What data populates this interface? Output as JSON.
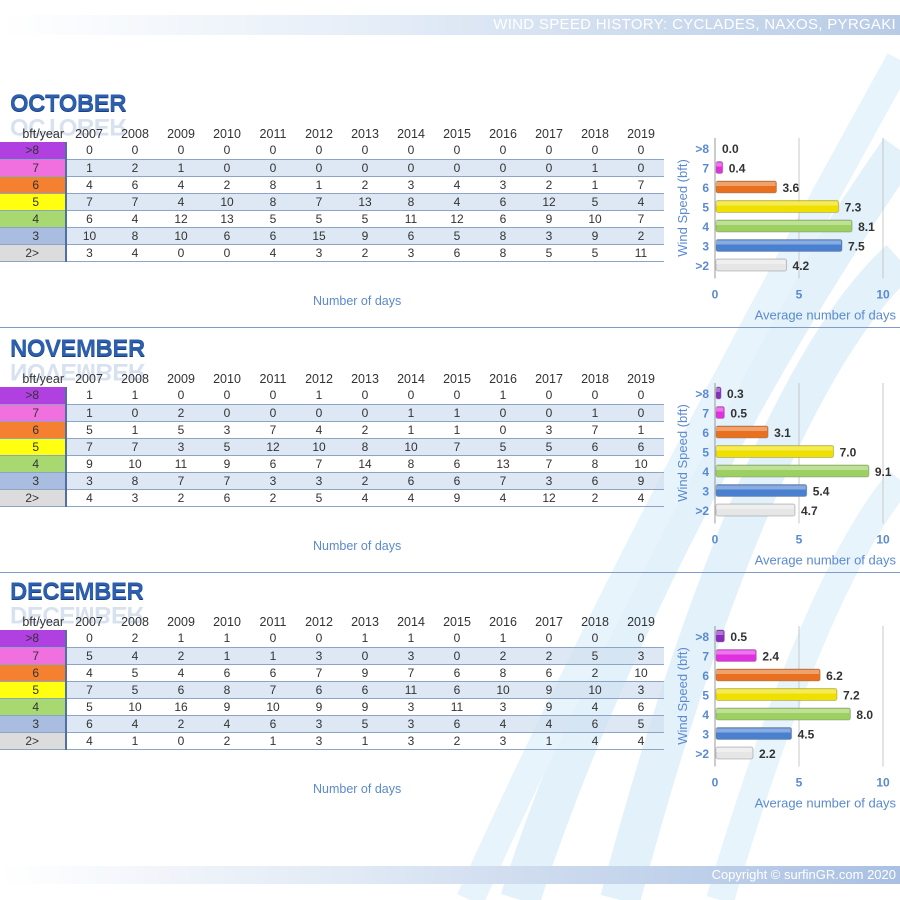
{
  "header": {
    "title": "WIND SPEED HISTORY: CYCLADES, NAXOS, PYRGAKI"
  },
  "footer": {
    "copyright": "Copyright © surfinGR.com 2020"
  },
  "table_header_label": "bft/year",
  "years": [
    "2007",
    "2008",
    "2009",
    "2010",
    "2011",
    "2012",
    "2013",
    "2014",
    "2015",
    "2016",
    "2017",
    "2018",
    "2019"
  ],
  "row_labels": [
    ">8",
    "7",
    "6",
    "5",
    "4",
    "3",
    "2>"
  ],
  "row_colors": [
    "#b040e0",
    "#f070e0",
    "#f58030",
    "#ffff10",
    "#a8d870",
    "#a8bde0",
    "#dcdcdc"
  ],
  "bar_colors": [
    "#8a2cc0",
    "#e030e0",
    "#e8701e",
    "#f0e000",
    "#9cd060",
    "#4a80d0",
    "#e6e6e6"
  ],
  "number_of_days_label": "Number of days",
  "chart_common": {
    "y_labels": [
      ">8",
      "7",
      "6",
      "5",
      "4",
      "3",
      ">2"
    ],
    "ylabel": "Wind Speed (bft)",
    "xlabel": "Average number of days",
    "x_ticks": [
      "0",
      "5",
      "10"
    ],
    "xlim": [
      0,
      10
    ]
  },
  "months": [
    {
      "name": "OCTOBER",
      "rows": [
        [
          "0",
          "0",
          "0",
          "0",
          "0",
          "0",
          "0",
          "0",
          "0",
          "0",
          "0",
          "0",
          "0"
        ],
        [
          "1",
          "2",
          "1",
          "0",
          "0",
          "0",
          "0",
          "0",
          "0",
          "0",
          "0",
          "1",
          "0"
        ],
        [
          "4",
          "6",
          "4",
          "2",
          "8",
          "1",
          "2",
          "3",
          "4",
          "3",
          "2",
          "1",
          "7"
        ],
        [
          "7",
          "7",
          "4",
          "10",
          "8",
          "7",
          "13",
          "8",
          "4",
          "6",
          "12",
          "5",
          "4"
        ],
        [
          "6",
          "4",
          "12",
          "13",
          "5",
          "5",
          "5",
          "11",
          "12",
          "6",
          "9",
          "10",
          "7"
        ],
        [
          "10",
          "8",
          "10",
          "6",
          "6",
          "15",
          "9",
          "6",
          "5",
          "8",
          "3",
          "9",
          "2"
        ],
        [
          "3",
          "4",
          "0",
          "0",
          "4",
          "3",
          "2",
          "3",
          "6",
          "8",
          "5",
          "5",
          "11"
        ]
      ],
      "averages": [
        "0.0",
        "0.4",
        "3.6",
        "7.3",
        "8.1",
        "7.5",
        "4.2"
      ]
    },
    {
      "name": "NOVEMBER",
      "rows": [
        [
          "1",
          "1",
          "0",
          "0",
          "0",
          "1",
          "0",
          "0",
          "0",
          "1",
          "0",
          "0",
          "0"
        ],
        [
          "1",
          "0",
          "2",
          "0",
          "0",
          "0",
          "0",
          "1",
          "1",
          "0",
          "0",
          "1",
          "0"
        ],
        [
          "5",
          "1",
          "5",
          "3",
          "7",
          "4",
          "2",
          "1",
          "1",
          "0",
          "3",
          "7",
          "1"
        ],
        [
          "7",
          "7",
          "3",
          "5",
          "12",
          "10",
          "8",
          "10",
          "7",
          "5",
          "5",
          "6",
          "6"
        ],
        [
          "9",
          "10",
          "11",
          "9",
          "6",
          "7",
          "14",
          "8",
          "6",
          "13",
          "7",
          "8",
          "10"
        ],
        [
          "3",
          "8",
          "7",
          "7",
          "3",
          "3",
          "2",
          "6",
          "6",
          "7",
          "3",
          "6",
          "9"
        ],
        [
          "4",
          "3",
          "2",
          "6",
          "2",
          "5",
          "4",
          "4",
          "9",
          "4",
          "12",
          "2",
          "4"
        ]
      ],
      "averages": [
        "0.3",
        "0.5",
        "3.1",
        "7.0",
        "9.1",
        "5.4",
        "4.7"
      ]
    },
    {
      "name": "DECEMBER",
      "rows": [
        [
          "0",
          "2",
          "1",
          "1",
          "0",
          "0",
          "1",
          "1",
          "0",
          "1",
          "0",
          "0",
          "0"
        ],
        [
          "5",
          "4",
          "2",
          "1",
          "1",
          "3",
          "0",
          "3",
          "0",
          "2",
          "2",
          "5",
          "3"
        ],
        [
          "4",
          "5",
          "4",
          "6",
          "6",
          "7",
          "9",
          "7",
          "6",
          "8",
          "6",
          "2",
          "10"
        ],
        [
          "7",
          "5",
          "6",
          "8",
          "7",
          "6",
          "6",
          "11",
          "6",
          "10",
          "9",
          "10",
          "3"
        ],
        [
          "5",
          "10",
          "16",
          "9",
          "10",
          "9",
          "9",
          "3",
          "11",
          "3",
          "9",
          "4",
          "6"
        ],
        [
          "6",
          "4",
          "2",
          "4",
          "6",
          "3",
          "5",
          "3",
          "6",
          "4",
          "4",
          "6",
          "5"
        ],
        [
          "4",
          "1",
          "0",
          "2",
          "1",
          "3",
          "1",
          "3",
          "2",
          "3",
          "1",
          "4",
          "4"
        ]
      ],
      "averages": [
        "0.5",
        "2.4",
        "6.2",
        "7.2",
        "8.0",
        "4.5",
        "2.2"
      ]
    }
  ]
}
